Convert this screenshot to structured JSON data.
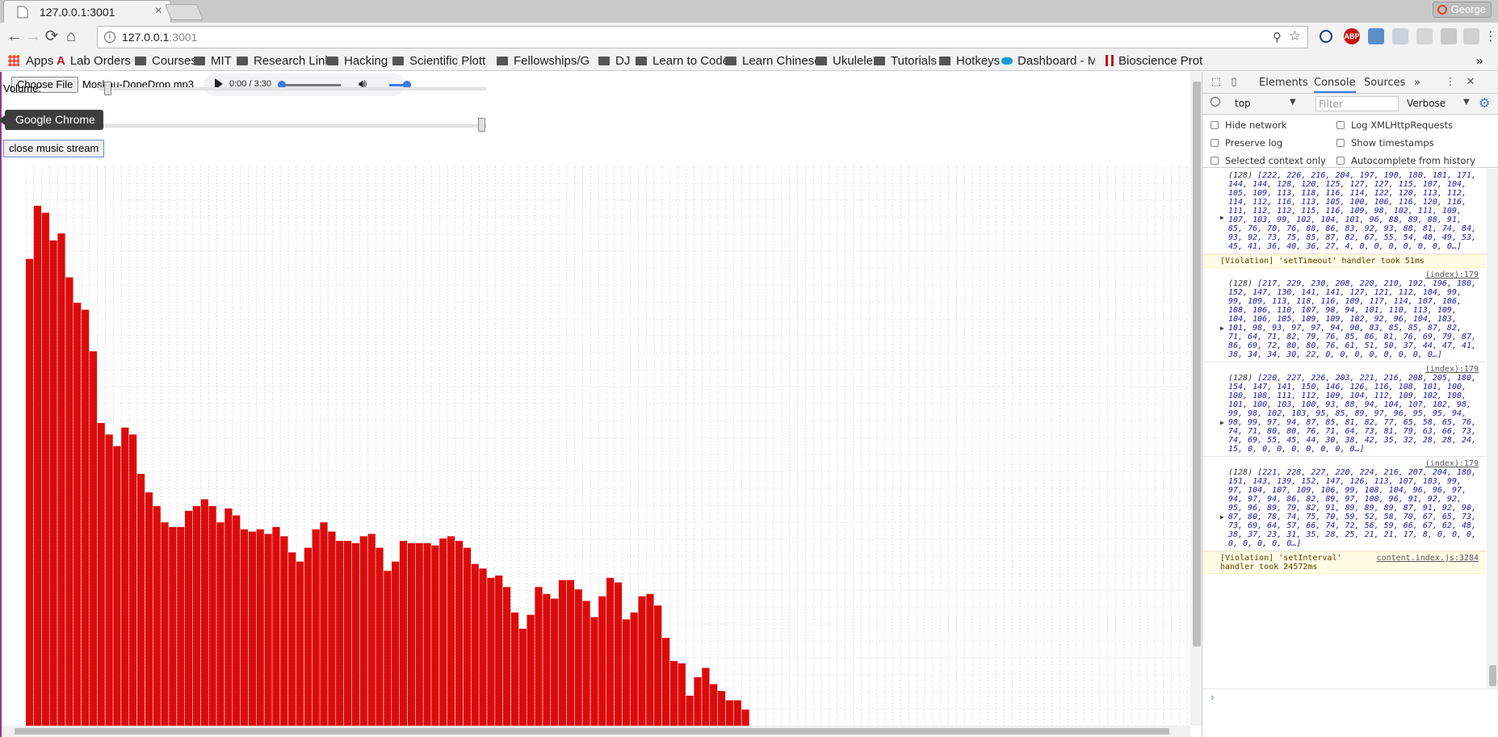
{
  "tab": {
    "title": "127.0.0.1:3001",
    "close": "×"
  },
  "profile": {
    "name": "George"
  },
  "omnibox": {
    "host": "127.0.0.1",
    "port": ":3001"
  },
  "bookmarks": [
    {
      "label": "Apps"
    },
    {
      "label": "Lab Orders"
    },
    {
      "label": "Courses"
    },
    {
      "label": "MIT"
    },
    {
      "label": "Research Links"
    },
    {
      "label": "Hacking"
    },
    {
      "label": "Scientific Plottin"
    },
    {
      "label": "Fellowships/Gra"
    },
    {
      "label": "DJ"
    },
    {
      "label": "Learn to Code"
    },
    {
      "label": "Learn Chinese"
    },
    {
      "label": "Ukulele"
    },
    {
      "label": "Tutorials"
    },
    {
      "label": "Hotkeys"
    },
    {
      "label": "Dashboard - Mic"
    },
    {
      "label": "Bioscience Proto"
    },
    {
      "label": "»"
    }
  ],
  "page": {
    "file_button": "Choose File",
    "file_name": "Moskau-DopeDrop.mp3",
    "audio_time": "0:00 / 3:30",
    "volume_label": "Volume:",
    "tooltip": "Google Chrome",
    "close_button": "close music stream"
  },
  "devtools": {
    "tabs": [
      "Elements",
      "Console",
      "Sources",
      "»"
    ],
    "context": "top",
    "filter_placeholder": "Filter",
    "level": "Verbose",
    "options": {
      "hide_network": "Hide network",
      "log_xhr": "Log XMLHttpRequests",
      "preserve_log": "Preserve log",
      "show_timestamps": "Show timestamps",
      "selected_context": "Selected context only",
      "autocomplete": "Autocomplete from history"
    },
    "log": [
      {
        "src": "",
        "len": "(128)",
        "values": "[222, 226, 216, 204, 197, 190, 180, 181, 171, 144, 144, 128, 120, 125, 127, 127, 115, 107, 104, 105, 109, 113, 118, 116, 114, 122, 120, 113, 112, 114, 112, 116, 113, 105, 100, 106, 116, 120, 116, 111, 112, 112, 115, 116, 109, 98, 102, 111, 109, 107, 103, 99, 102, 104, 101, 96, 88, 89, 88, 91, 85, 76, 70, 76, 88, 86, 83, 92, 93, 88, 81, 74, 84, 93, 92, 73, 75, 85, 87, 82, 67, 55, 54, 40, 49, 53, 45, 41, 36, 40, 36, 27, 4, 0, 0, 0, 0, 0, 0, 0…]"
      },
      {
        "warn": "[Violation] 'setTimeout' handler took 51ms",
        "src": ""
      },
      {
        "src": "(index):179",
        "len": "(128)",
        "values": "[217, 229, 230, 208, 220, 210, 192, 196, 180, 152, 147, 130, 141, 141, 127, 121, 112, 104, 99, 99, 109, 113, 118, 116, 109, 117, 114, 107, 106, 108, 106, 110, 107, 98, 94, 101, 110, 113, 109, 104, 106, 105, 109, 109, 102, 92, 96, 104, 103, 101, 98, 93, 97, 97, 94, 90, 83, 85, 85, 87, 82, 71, 64, 71, 82, 79, 76, 85, 86, 81, 76, 69, 79, 87, 86, 69, 72, 80, 80, 76, 61, 51, 50, 37, 44, 47, 41, 38, 34, 34, 30, 22, 0, 0, 0, 0, 0, 0, 0, 0…]"
      },
      {
        "src": "(index):179",
        "len": "(128)",
        "values": "[220, 227, 226, 203, 221, 216, 208, 205, 180, 154, 147, 141, 150, 146, 126, 116, 108, 101, 100, 100, 108, 111, 112, 109, 104, 112, 109, 102, 100, 101, 100, 103, 100, 93, 88, 94, 104, 107, 102, 98, 99, 98, 102, 103, 95, 85, 89, 97, 96, 95, 95, 94, 98, 99, 97, 94, 87, 85, 81, 82, 77, 65, 58, 65, 76, 74, 71, 80, 80, 76, 71, 64, 73, 81, 79, 63, 66, 73, 74, 69, 55, 45, 44, 30, 38, 42, 35, 32, 28, 28, 24, 15, 0, 0, 0, 0, 0, 0, 0, 0…]"
      },
      {
        "src": "(index):179",
        "len": "(128)",
        "values": "[221, 228, 227, 220, 224, 216, 207, 204, 180, 151, 143, 139, 152, 147, 126, 113, 107, 103, 99, 97, 104, 107, 109, 106, 99, 108, 104, 96, 96, 97, 94, 97, 94, 86, 82, 89, 97, 100, 96, 91, 92, 92, 95, 96, 89, 79, 82, 91, 89, 89, 89, 87, 91, 92, 90, 87, 80, 78, 74, 75, 70, 59, 52, 58, 70, 67, 65, 73, 73, 69, 64, 57, 66, 74, 72, 56, 59, 66, 67, 62, 48, 38, 37, 23, 31, 35, 28, 25, 21, 21, 17, 8, 0, 0, 0, 0, 0, 0, 0, 0…]"
      },
      {
        "warn": "[Violation] 'setInterval' handler took 24572ms",
        "src": "content.index.js:3284"
      }
    ],
    "prompt": "›"
  },
  "chart_data": {
    "type": "bar",
    "ylim": [
      0,
      255
    ],
    "grid": true,
    "color": "#dd0a0a",
    "values": [
      202,
      225,
      222,
      210,
      213,
      194,
      183,
      180,
      162,
      131,
      126,
      121,
      129,
      126,
      109,
      101,
      95,
      88,
      86,
      86,
      93,
      95,
      98,
      95,
      88,
      94,
      91,
      85,
      84,
      85,
      83,
      86,
      82,
      75,
      71,
      77,
      85,
      88,
      84,
      80,
      80,
      79,
      82,
      83,
      77,
      67,
      71,
      80,
      79,
      79,
      79,
      78,
      81,
      82,
      80,
      77,
      70,
      68,
      64,
      65,
      60,
      49,
      42,
      48,
      60,
      57,
      55,
      63,
      63,
      59,
      54,
      47,
      56,
      64,
      62,
      46,
      49,
      56,
      57,
      52,
      38,
      28,
      27,
      13,
      21,
      25,
      18,
      15,
      11,
      11,
      7,
      0,
      0,
      0,
      0,
      0,
      0,
      0,
      0,
      0,
      0,
      0,
      0,
      0,
      0,
      0,
      0,
      0,
      0,
      0,
      0,
      0,
      0,
      0,
      0,
      0,
      0,
      0,
      0,
      0,
      0,
      0,
      0,
      0,
      0,
      0,
      0,
      0
    ]
  }
}
